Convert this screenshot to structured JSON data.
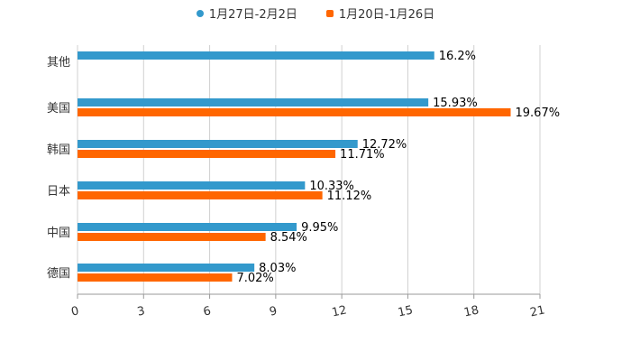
{
  "chart_data": {
    "type": "bar",
    "orientation": "horizontal",
    "categories": [
      "其他",
      "美国",
      "韩国",
      "日本",
      "中国",
      "德国"
    ],
    "series": [
      {
        "name": "1月27日-2月2日",
        "color": "#3399cc",
        "values": [
          16.2,
          15.93,
          12.72,
          10.33,
          9.95,
          8.03
        ],
        "labels": [
          "16.2%",
          "15.93%",
          "12.72%",
          "10.33%",
          "9.95%",
          "8.03%"
        ]
      },
      {
        "name": "1月20日-1月26日",
        "color": "#ff6600",
        "values": [
          null,
          19.67,
          11.71,
          11.12,
          8.54,
          7.02
        ],
        "labels": [
          null,
          "19.67%",
          "11.71%",
          "11.12%",
          "8.54%",
          "7.02%"
        ]
      }
    ],
    "xlim": [
      0,
      21
    ],
    "xticks": [
      "0",
      "3",
      "6",
      "9",
      "12",
      "15",
      "18",
      "21"
    ],
    "grid": true,
    "legend": "top-center"
  }
}
